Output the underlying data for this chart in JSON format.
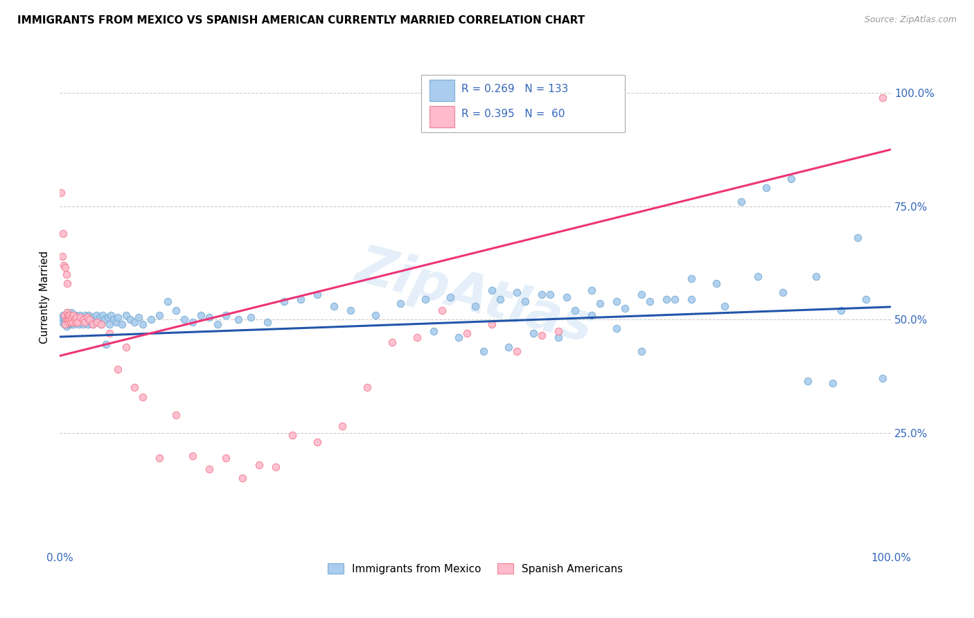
{
  "title": "IMMIGRANTS FROM MEXICO VS SPANISH AMERICAN CURRENTLY MARRIED CORRELATION CHART",
  "source": "Source: ZipAtlas.com",
  "ylabel": "Currently Married",
  "right_yticks": [
    "100.0%",
    "75.0%",
    "50.0%",
    "25.0%"
  ],
  "right_ytick_vals": [
    1.0,
    0.75,
    0.5,
    0.25
  ],
  "blue_color": "#7aadd4",
  "pink_color": "#f08090",
  "blue_line_color": "#2255aa",
  "pink_line_color": "#ee3377",
  "blue_scatter_fill": "#aaccee",
  "pink_scatter_fill": "#ffbbcc",
  "watermark": "ZipAtlas",
  "R_blue": 0.269,
  "N_blue": 133,
  "R_pink": 0.395,
  "N_pink": 60,
  "blue_trend": [
    0.0,
    0.462,
    1.0,
    0.528
  ],
  "pink_trend": [
    0.0,
    0.42,
    1.0,
    0.875
  ],
  "blue_points_x": [
    0.002,
    0.003,
    0.004,
    0.005,
    0.006,
    0.007,
    0.007,
    0.008,
    0.008,
    0.009,
    0.009,
    0.01,
    0.01,
    0.011,
    0.011,
    0.012,
    0.012,
    0.013,
    0.013,
    0.014,
    0.014,
    0.015,
    0.015,
    0.016,
    0.016,
    0.017,
    0.017,
    0.018,
    0.018,
    0.019,
    0.02,
    0.021,
    0.022,
    0.023,
    0.024,
    0.025,
    0.026,
    0.027,
    0.028,
    0.03,
    0.031,
    0.032,
    0.033,
    0.034,
    0.035,
    0.036,
    0.037,
    0.038,
    0.04,
    0.042,
    0.044,
    0.046,
    0.048,
    0.05,
    0.052,
    0.054,
    0.056,
    0.058,
    0.06,
    0.062,
    0.065,
    0.068,
    0.07,
    0.075,
    0.08,
    0.085,
    0.09,
    0.095,
    0.1,
    0.11,
    0.12,
    0.13,
    0.14,
    0.15,
    0.16,
    0.17,
    0.18,
    0.19,
    0.2,
    0.215,
    0.23,
    0.25,
    0.27,
    0.29,
    0.31,
    0.33,
    0.35,
    0.38,
    0.41,
    0.44,
    0.47,
    0.5,
    0.53,
    0.56,
    0.59,
    0.62,
    0.65,
    0.68,
    0.71,
    0.74,
    0.52,
    0.55,
    0.58,
    0.61,
    0.64,
    0.67,
    0.7,
    0.73,
    0.76,
    0.79,
    0.82,
    0.85,
    0.88,
    0.91,
    0.94,
    0.97,
    0.76,
    0.8,
    0.84,
    0.87,
    0.9,
    0.93,
    0.96,
    0.99,
    0.45,
    0.48,
    0.51,
    0.54,
    0.57,
    0.6,
    0.64,
    0.67,
    0.7
  ],
  "blue_points_y": [
    0.505,
    0.495,
    0.51,
    0.5,
    0.49,
    0.505,
    0.495,
    0.51,
    0.485,
    0.5,
    0.515,
    0.495,
    0.505,
    0.49,
    0.51,
    0.5,
    0.495,
    0.505,
    0.49,
    0.5,
    0.515,
    0.49,
    0.505,
    0.495,
    0.51,
    0.5,
    0.49,
    0.505,
    0.495,
    0.51,
    0.5,
    0.495,
    0.505,
    0.49,
    0.51,
    0.5,
    0.495,
    0.505,
    0.49,
    0.5,
    0.51,
    0.495,
    0.505,
    0.49,
    0.51,
    0.5,
    0.495,
    0.505,
    0.49,
    0.5,
    0.51,
    0.495,
    0.505,
    0.49,
    0.51,
    0.5,
    0.445,
    0.505,
    0.49,
    0.51,
    0.5,
    0.495,
    0.505,
    0.49,
    0.51,
    0.5,
    0.495,
    0.505,
    0.49,
    0.5,
    0.51,
    0.54,
    0.52,
    0.5,
    0.495,
    0.51,
    0.505,
    0.49,
    0.51,
    0.5,
    0.505,
    0.495,
    0.54,
    0.545,
    0.555,
    0.53,
    0.52,
    0.51,
    0.535,
    0.545,
    0.55,
    0.53,
    0.545,
    0.54,
    0.555,
    0.52,
    0.535,
    0.525,
    0.54,
    0.545,
    0.565,
    0.56,
    0.555,
    0.55,
    0.565,
    0.54,
    0.555,
    0.545,
    0.59,
    0.58,
    0.76,
    0.79,
    0.81,
    0.595,
    0.52,
    0.545,
    0.545,
    0.53,
    0.595,
    0.56,
    0.365,
    0.36,
    0.68,
    0.37,
    0.475,
    0.46,
    0.43,
    0.44,
    0.47,
    0.46,
    0.51,
    0.48,
    0.43
  ],
  "pink_points_x": [
    0.002,
    0.003,
    0.004,
    0.005,
    0.006,
    0.007,
    0.007,
    0.008,
    0.008,
    0.009,
    0.009,
    0.01,
    0.01,
    0.011,
    0.011,
    0.012,
    0.012,
    0.013,
    0.014,
    0.015,
    0.016,
    0.017,
    0.018,
    0.019,
    0.02,
    0.022,
    0.025,
    0.028,
    0.03,
    0.033,
    0.036,
    0.04,
    0.045,
    0.05,
    0.06,
    0.07,
    0.08,
    0.09,
    0.1,
    0.12,
    0.14,
    0.16,
    0.18,
    0.2,
    0.22,
    0.24,
    0.26,
    0.28,
    0.31,
    0.34,
    0.37,
    0.4,
    0.43,
    0.46,
    0.49,
    0.52,
    0.55,
    0.58,
    0.6,
    0.99
  ],
  "pink_points_y": [
    0.78,
    0.64,
    0.69,
    0.62,
    0.51,
    0.615,
    0.49,
    0.6,
    0.5,
    0.58,
    0.515,
    0.5,
    0.51,
    0.495,
    0.505,
    0.5,
    0.51,
    0.495,
    0.505,
    0.5,
    0.495,
    0.51,
    0.5,
    0.495,
    0.505,
    0.495,
    0.505,
    0.5,
    0.495,
    0.505,
    0.5,
    0.49,
    0.495,
    0.49,
    0.47,
    0.39,
    0.44,
    0.35,
    0.33,
    0.195,
    0.29,
    0.2,
    0.17,
    0.195,
    0.15,
    0.18,
    0.175,
    0.245,
    0.23,
    0.265,
    0.35,
    0.45,
    0.46,
    0.52,
    0.47,
    0.49,
    0.43,
    0.465,
    0.475,
    0.99
  ]
}
